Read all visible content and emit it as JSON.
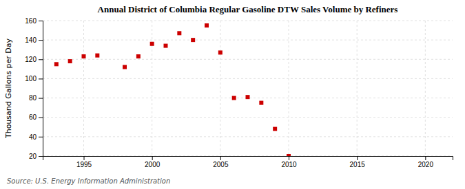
{
  "chart_data": {
    "type": "scatter",
    "title": "Annual District of Columbia Regular Gasoline DTW Sales Volume by Refiners",
    "ylabel": "Thousand Gallons per Day",
    "annotations": [
      "Source: U.S. Energy Information Administration"
    ],
    "x": [
      1993,
      1994,
      1995,
      1996,
      1998,
      1999,
      2000,
      2001,
      2002,
      2003,
      2004,
      2005,
      2006,
      2007,
      2008,
      2009,
      2010
    ],
    "values": [
      115,
      118,
      123,
      124,
      112,
      123,
      136,
      134,
      147,
      140,
      155,
      127,
      80,
      81,
      75,
      48,
      20
    ],
    "color": "#cc0000",
    "marker": "square",
    "xlim": [
      1992,
      2022
    ],
    "ylim": [
      20,
      160
    ],
    "xticks": [
      1995,
      2000,
      2005,
      2010,
      2015,
      2020
    ],
    "yticks": [
      20,
      40,
      60,
      80,
      100,
      120,
      140,
      160
    ],
    "grid": true
  }
}
